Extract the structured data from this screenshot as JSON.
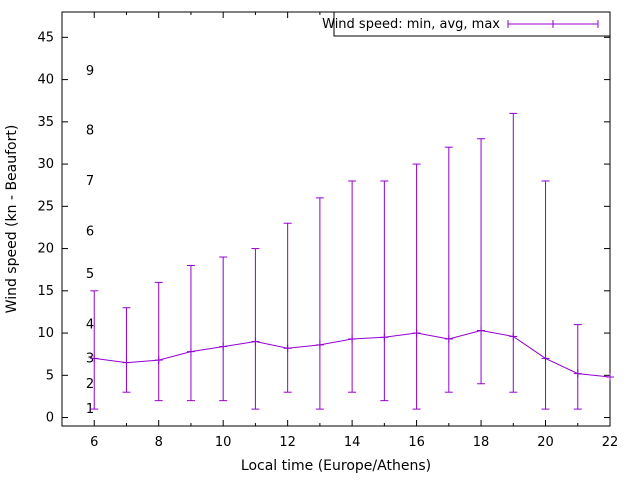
{
  "chart_data": {
    "type": "line",
    "title": "",
    "xlabel": "Local time (Europe/Athens)",
    "ylabel": "Wind speed (kn - Beaufort)",
    "legend": {
      "label": "Wind speed: min, avg, max",
      "position": "top-right"
    },
    "color": "#9400d3",
    "axis_color": "#000000",
    "grid": false,
    "x_range": [
      5,
      22
    ],
    "y_range": [
      -1,
      48
    ],
    "x_ticks_major": [
      6,
      8,
      10,
      12,
      14,
      16,
      18,
      20,
      22
    ],
    "x_ticks_minor": [
      7,
      9,
      11,
      13,
      15,
      17,
      19,
      21
    ],
    "y_ticks": [
      0,
      5,
      10,
      15,
      20,
      25,
      30,
      35,
      40,
      45
    ],
    "beaufort_ticks": [
      {
        "label": "1",
        "kn": 1
      },
      {
        "label": "2",
        "kn": 4
      },
      {
        "label": "3",
        "kn": 7
      },
      {
        "label": "4",
        "kn": 11
      },
      {
        "label": "5",
        "kn": 17
      },
      {
        "label": "6",
        "kn": 22
      },
      {
        "label": "7",
        "kn": 28
      },
      {
        "label": "8",
        "kn": 34
      },
      {
        "label": "9",
        "kn": 41
      }
    ],
    "x": [
      6,
      7,
      8,
      9,
      10,
      11,
      12,
      13,
      14,
      15,
      16,
      17,
      18,
      19,
      20,
      21,
      22
    ],
    "series": [
      {
        "name": "avg",
        "values": [
          7,
          6.5,
          6.8,
          7.8,
          8.4,
          9,
          8.2,
          8.6,
          9.3,
          9.5,
          10,
          9.3,
          10.3,
          9.6,
          7,
          5.2,
          4.8
        ]
      },
      {
        "name": "min",
        "values": [
          1,
          3,
          2,
          2,
          2,
          1,
          3,
          1,
          3,
          2,
          1,
          3,
          4,
          3,
          1,
          1,
          null
        ]
      },
      {
        "name": "max",
        "values": [
          15,
          13,
          16,
          18,
          19,
          20,
          23,
          26,
          28,
          28,
          30,
          32,
          33,
          36,
          28,
          11,
          null
        ]
      }
    ]
  }
}
